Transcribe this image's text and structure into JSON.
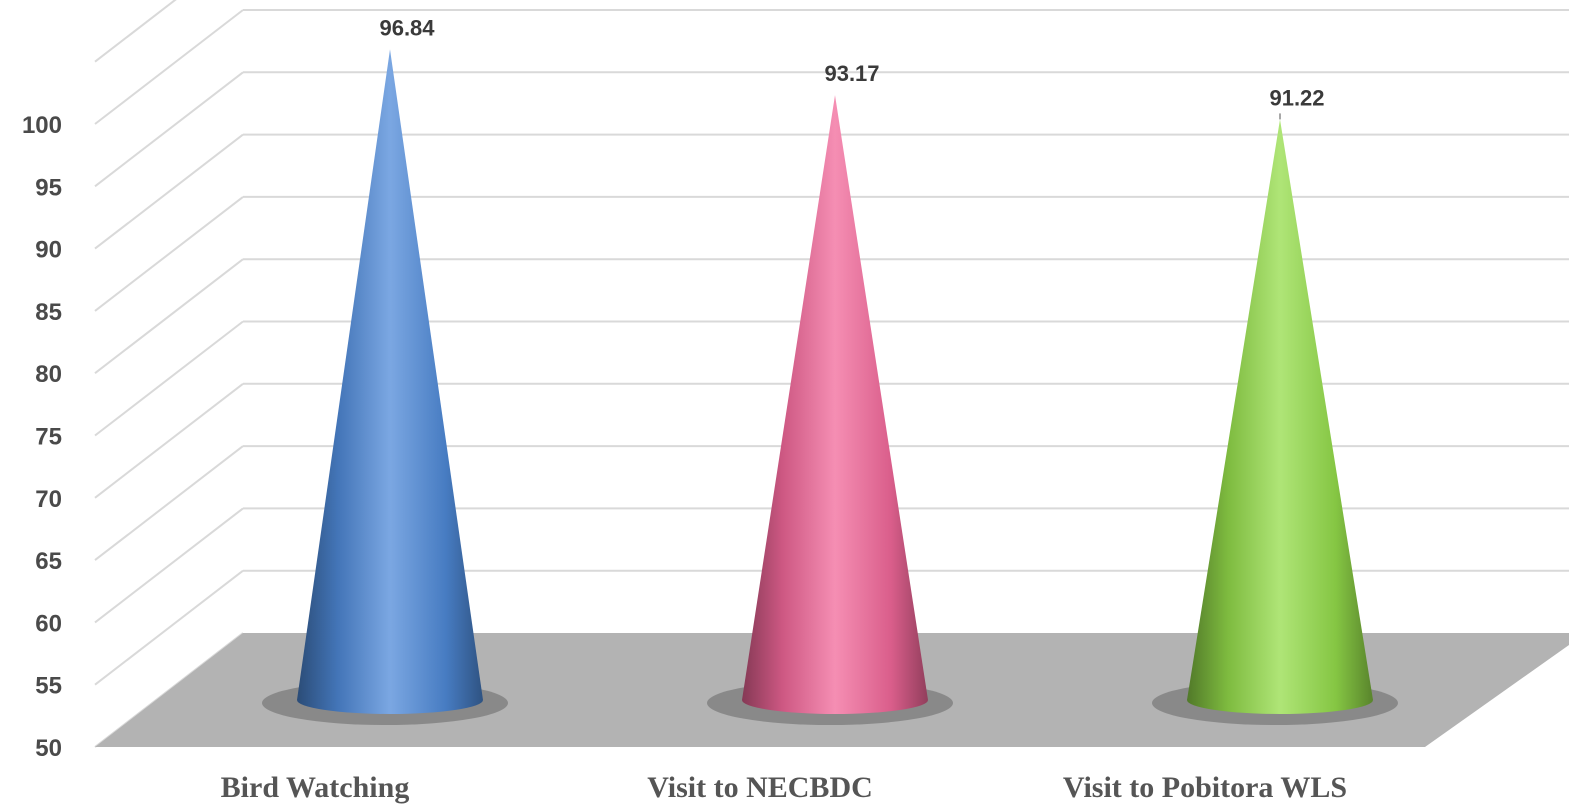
{
  "chart_data": {
    "type": "bar",
    "subtype": "3d-cone",
    "categories": [
      "Bird Watching",
      "Visit to NECBDC",
      "Visit to Pobitora WLS"
    ],
    "series": [
      {
        "values": [
          96.84,
          93.17,
          91.22
        ]
      }
    ],
    "colors": [
      "#4f8ad8",
      "#f2689a",
      "#94dc4a"
    ],
    "ylim": [
      50,
      100
    ],
    "yticks": [
      50,
      55,
      60,
      65,
      70,
      75,
      80,
      85,
      90,
      95,
      100
    ],
    "tick_labels": [
      "50",
      "55",
      "60",
      "65",
      "70",
      "75",
      "80",
      "85",
      "90",
      "95",
      "100"
    ],
    "data_labels": [
      "96.84",
      "93.17",
      "91.22"
    ],
    "grid": true,
    "legend": "none"
  }
}
